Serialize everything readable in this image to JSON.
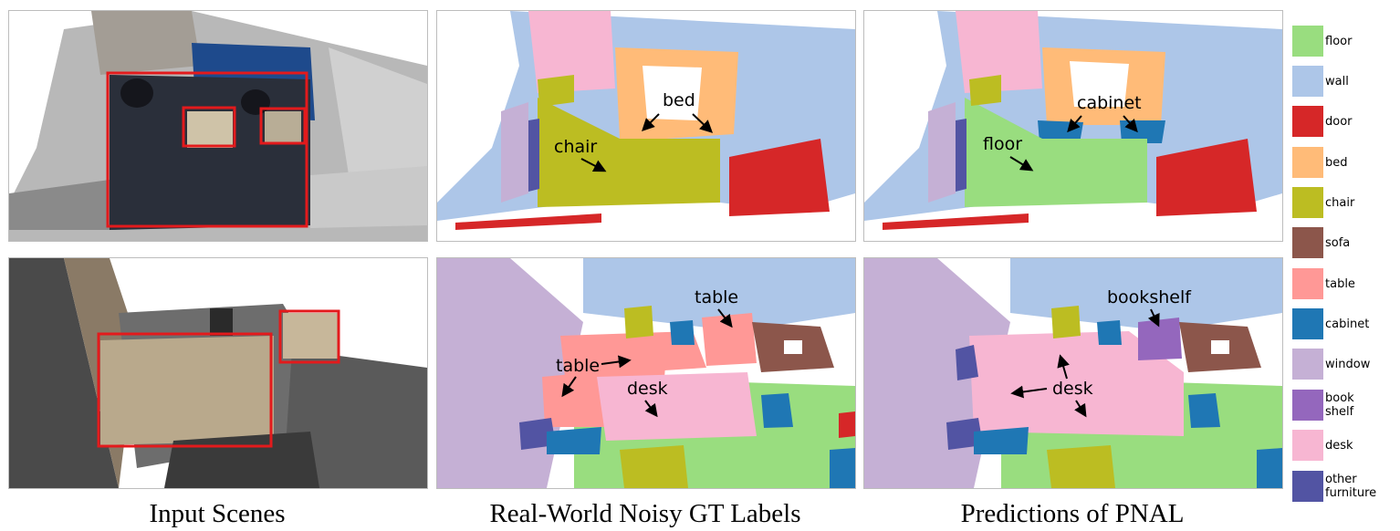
{
  "captions": {
    "input": "Input Scenes",
    "noisy": "Real-World Noisy GT Labels",
    "pred": "Predictions of PNAL"
  },
  "annotations": {
    "row1_noisy": {
      "bed": "bed",
      "chair": "chair"
    },
    "row1_pred": {
      "cabinet": "cabinet",
      "floor": "floor"
    },
    "row2_noisy": {
      "table_top": "table",
      "table_left": "table",
      "desk": "desk"
    },
    "row2_pred": {
      "bookshelf": "bookshelf",
      "desk": "desk"
    }
  },
  "colors": {
    "floor": "#99dd7f",
    "wall": "#adc6e8",
    "door": "#d62728",
    "bed": "#ffbb78",
    "chair": "#bcbd22",
    "sofa": "#8c564b",
    "table": "#ff9896",
    "cabinet": "#1f77b4",
    "window": "#c5b0d5",
    "bookshelf": "#9467bd",
    "desk": "#f7b6d2",
    "other": "#5254a3",
    "box": "#e31a1c"
  },
  "legend": [
    {
      "label": "floor",
      "color": "#99dd7f"
    },
    {
      "label": "wall",
      "color": "#adc6e8"
    },
    {
      "label": "door",
      "color": "#d62728"
    },
    {
      "label": "bed",
      "color": "#ffbb78"
    },
    {
      "label": "chair",
      "color": "#bcbd22"
    },
    {
      "label": "sofa",
      "color": "#8c564b"
    },
    {
      "label": "table",
      "color": "#ff9896"
    },
    {
      "label": "cabinet",
      "color": "#1f77b4"
    },
    {
      "label": "window",
      "color": "#c5b0d5"
    },
    {
      "label": "book shelf",
      "color": "#9467bd"
    },
    {
      "label": "desk",
      "color": "#f7b6d2"
    },
    {
      "label": "other furniture",
      "color": "#5254a3"
    }
  ]
}
